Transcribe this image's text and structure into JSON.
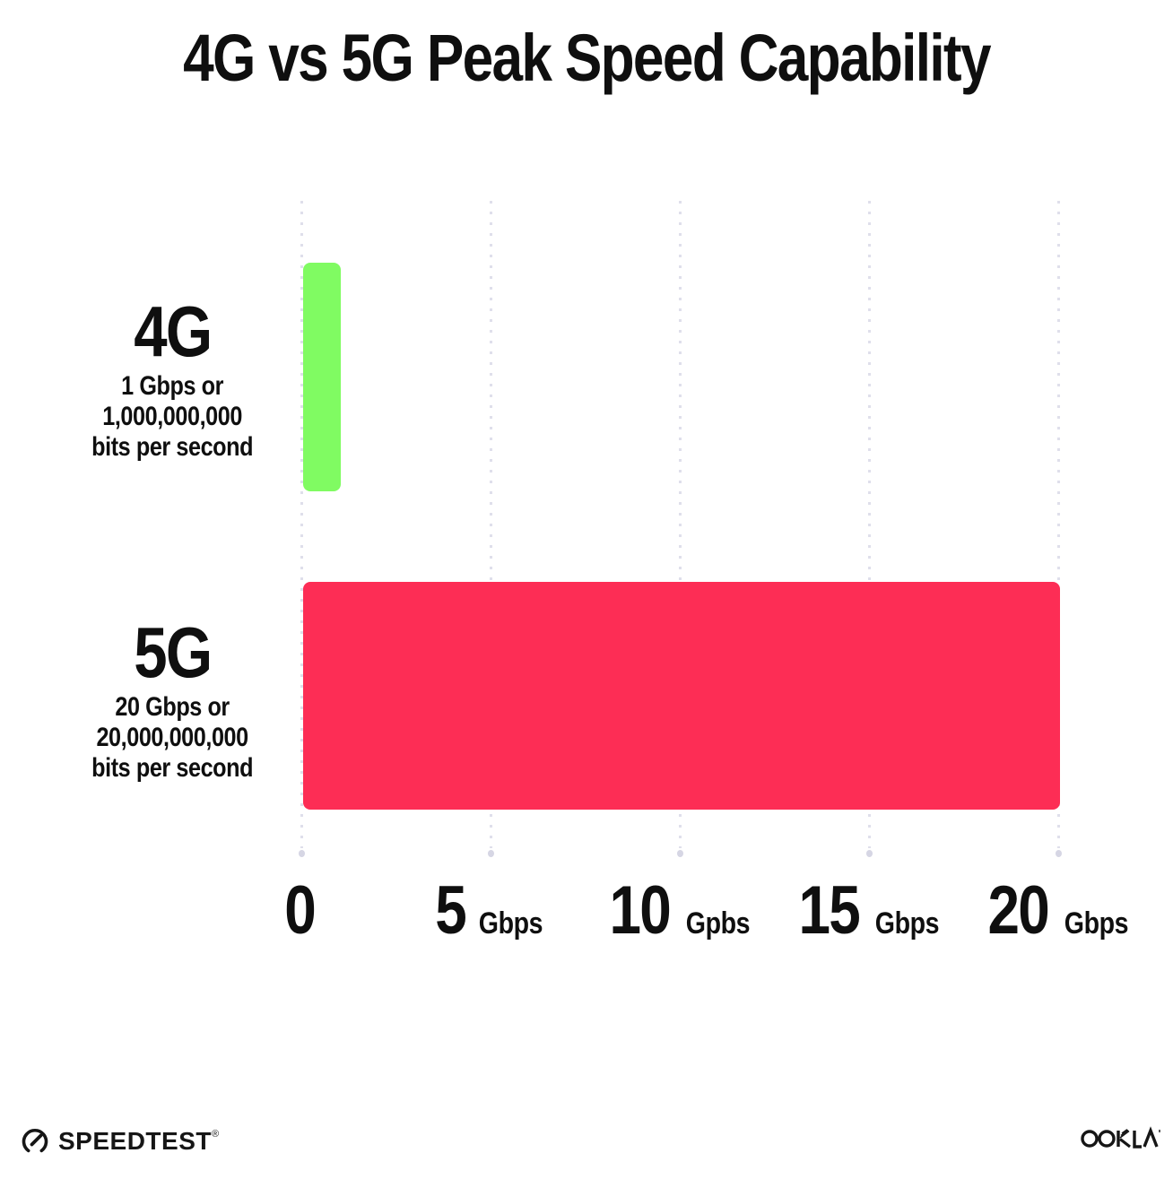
{
  "title": "4G vs 5G Peak Speed Capability",
  "colors": {
    "bar_4g_green": "#80FB62",
    "bar_5g_red": "#FD2D55",
    "gridline": "#DFDFEB",
    "text": "#0F0F0F"
  },
  "chart_data": {
    "type": "bar",
    "orientation": "horizontal",
    "title": "4G vs 5G Peak Speed Capability",
    "xlabel": "",
    "ylabel": "",
    "xlim": [
      0,
      20
    ],
    "grid": "vertical-dotted",
    "legend": "none",
    "categories": [
      "4G",
      "5G"
    ],
    "values": [
      1,
      20
    ],
    "value_unit": "Gbps",
    "bars": [
      {
        "category": "4G",
        "value_gbps": 1,
        "color": "#80FB62",
        "sublabel_lines": [
          "1 Gbps or",
          "1,000,000,000",
          "bits per second"
        ]
      },
      {
        "category": "5G",
        "value_gbps": 20,
        "color": "#FD2D55",
        "sublabel_lines": [
          "20 Gbps or",
          "20,000,000,000",
          "bits per second"
        ]
      }
    ],
    "xticks": [
      {
        "value": 0,
        "label": "0",
        "unit": ""
      },
      {
        "value": 5,
        "label": "5",
        "unit": "Gbps"
      },
      {
        "value": 10,
        "label": "10",
        "unit": "Gpbs"
      },
      {
        "value": 15,
        "label": "15",
        "unit": "Gbps"
      },
      {
        "value": 20,
        "label": "20",
        "unit": "Gbps"
      }
    ]
  },
  "footer": {
    "speedtest_label": "SPEEDTEST",
    "speedtest_trademark": "®",
    "ookla_label": "OOKLA"
  }
}
